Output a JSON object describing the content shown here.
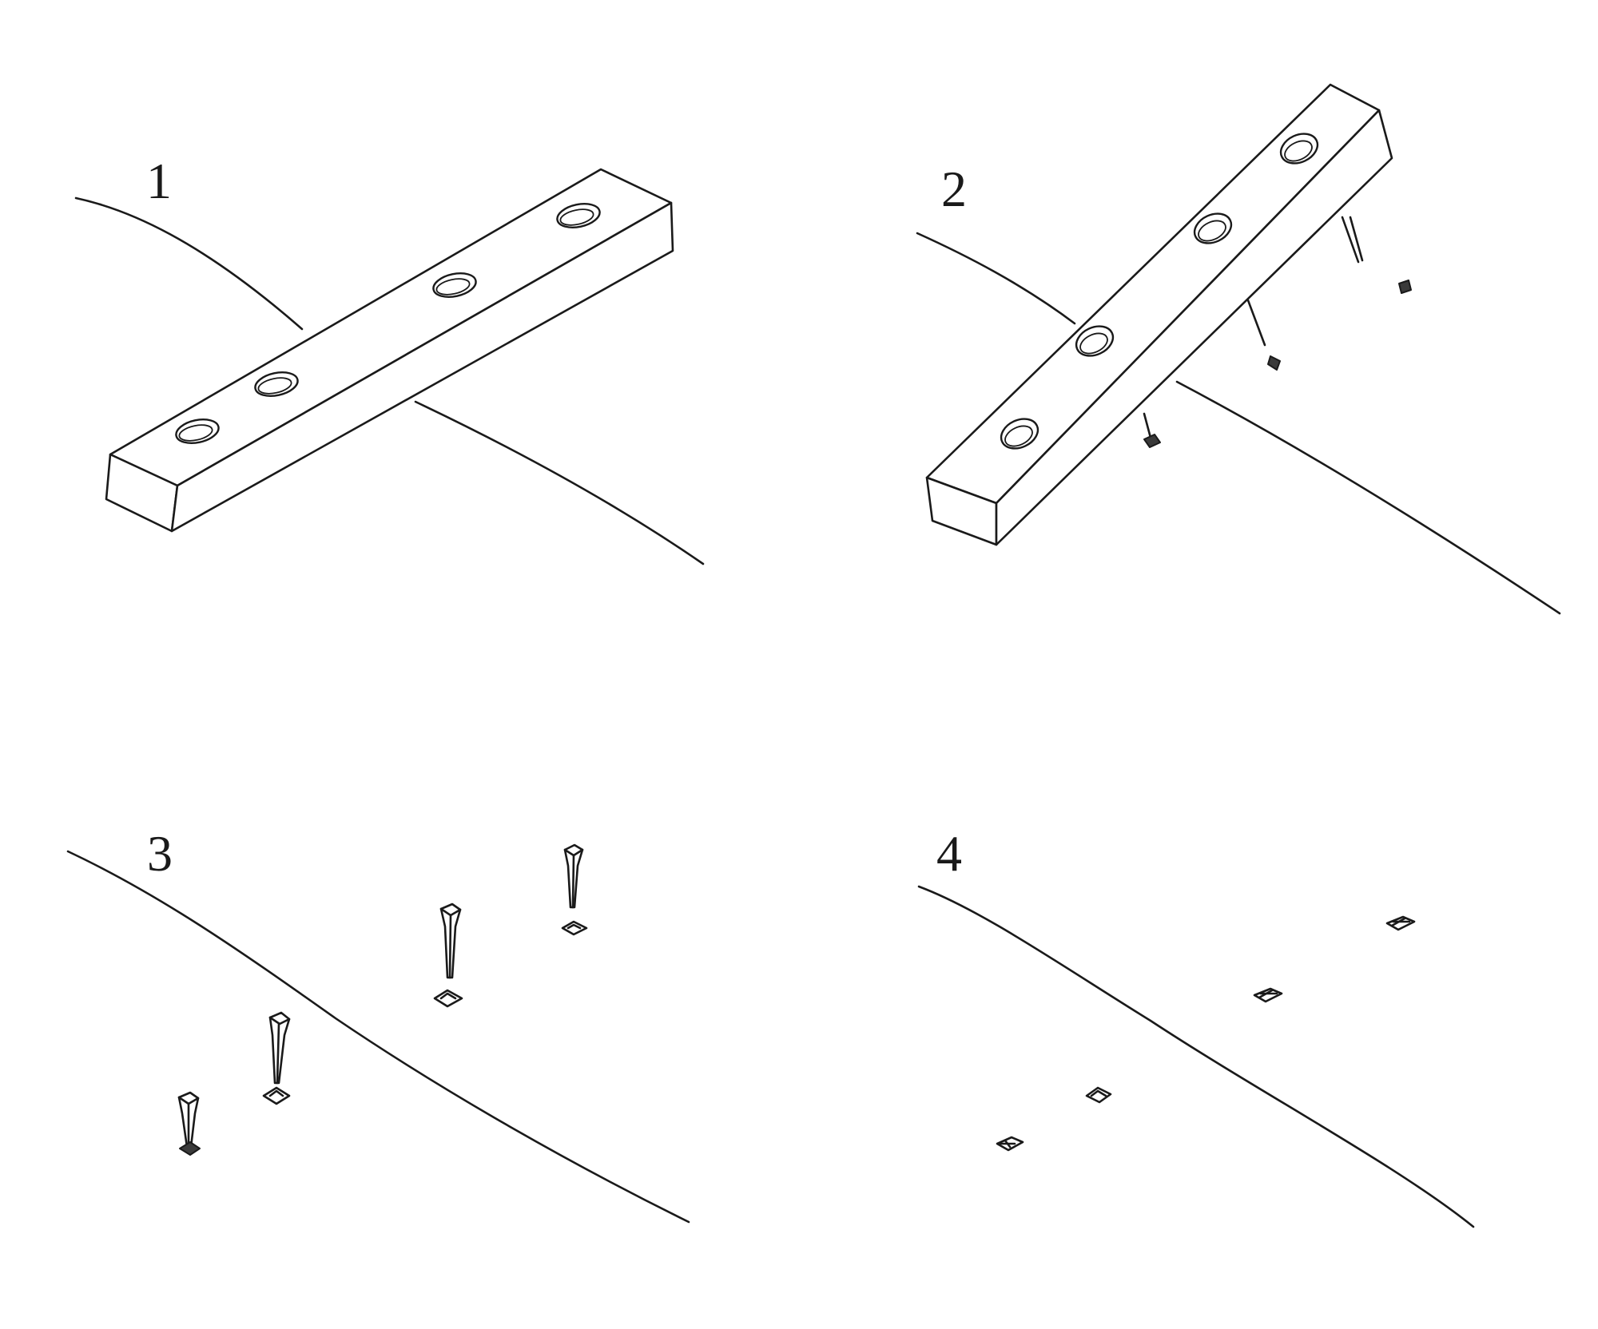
{
  "panels": [
    {
      "number": "1"
    },
    {
      "number": "2"
    },
    {
      "number": "3"
    },
    {
      "number": "4"
    }
  ],
  "colors": {
    "ink": "#1a1a1a",
    "paper": "#ffffff"
  }
}
